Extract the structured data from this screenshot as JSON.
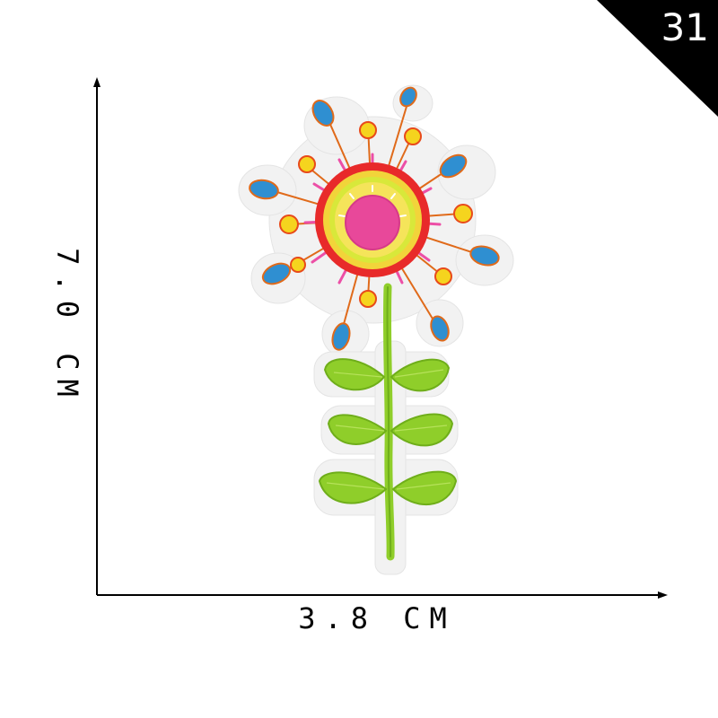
{
  "badge": {
    "number": "31",
    "background": "#000000",
    "text_color": "#ffffff"
  },
  "dimensions": {
    "width_label": "3.8 CM",
    "height_label": "7.0 CM"
  },
  "product": {
    "icon": "embroidered-flower-patch",
    "colors": {
      "felt_backing": "#f2f2f2",
      "center": "#e8489a",
      "inner_ring": "#f2d43a",
      "outer_ring": "#e82a2a",
      "petal_dots": "#f5d41e",
      "petal_tips": "#2f8fd1",
      "pink_spikes": "#ec4fa6",
      "stem_leaves": "#8fce2a"
    }
  }
}
